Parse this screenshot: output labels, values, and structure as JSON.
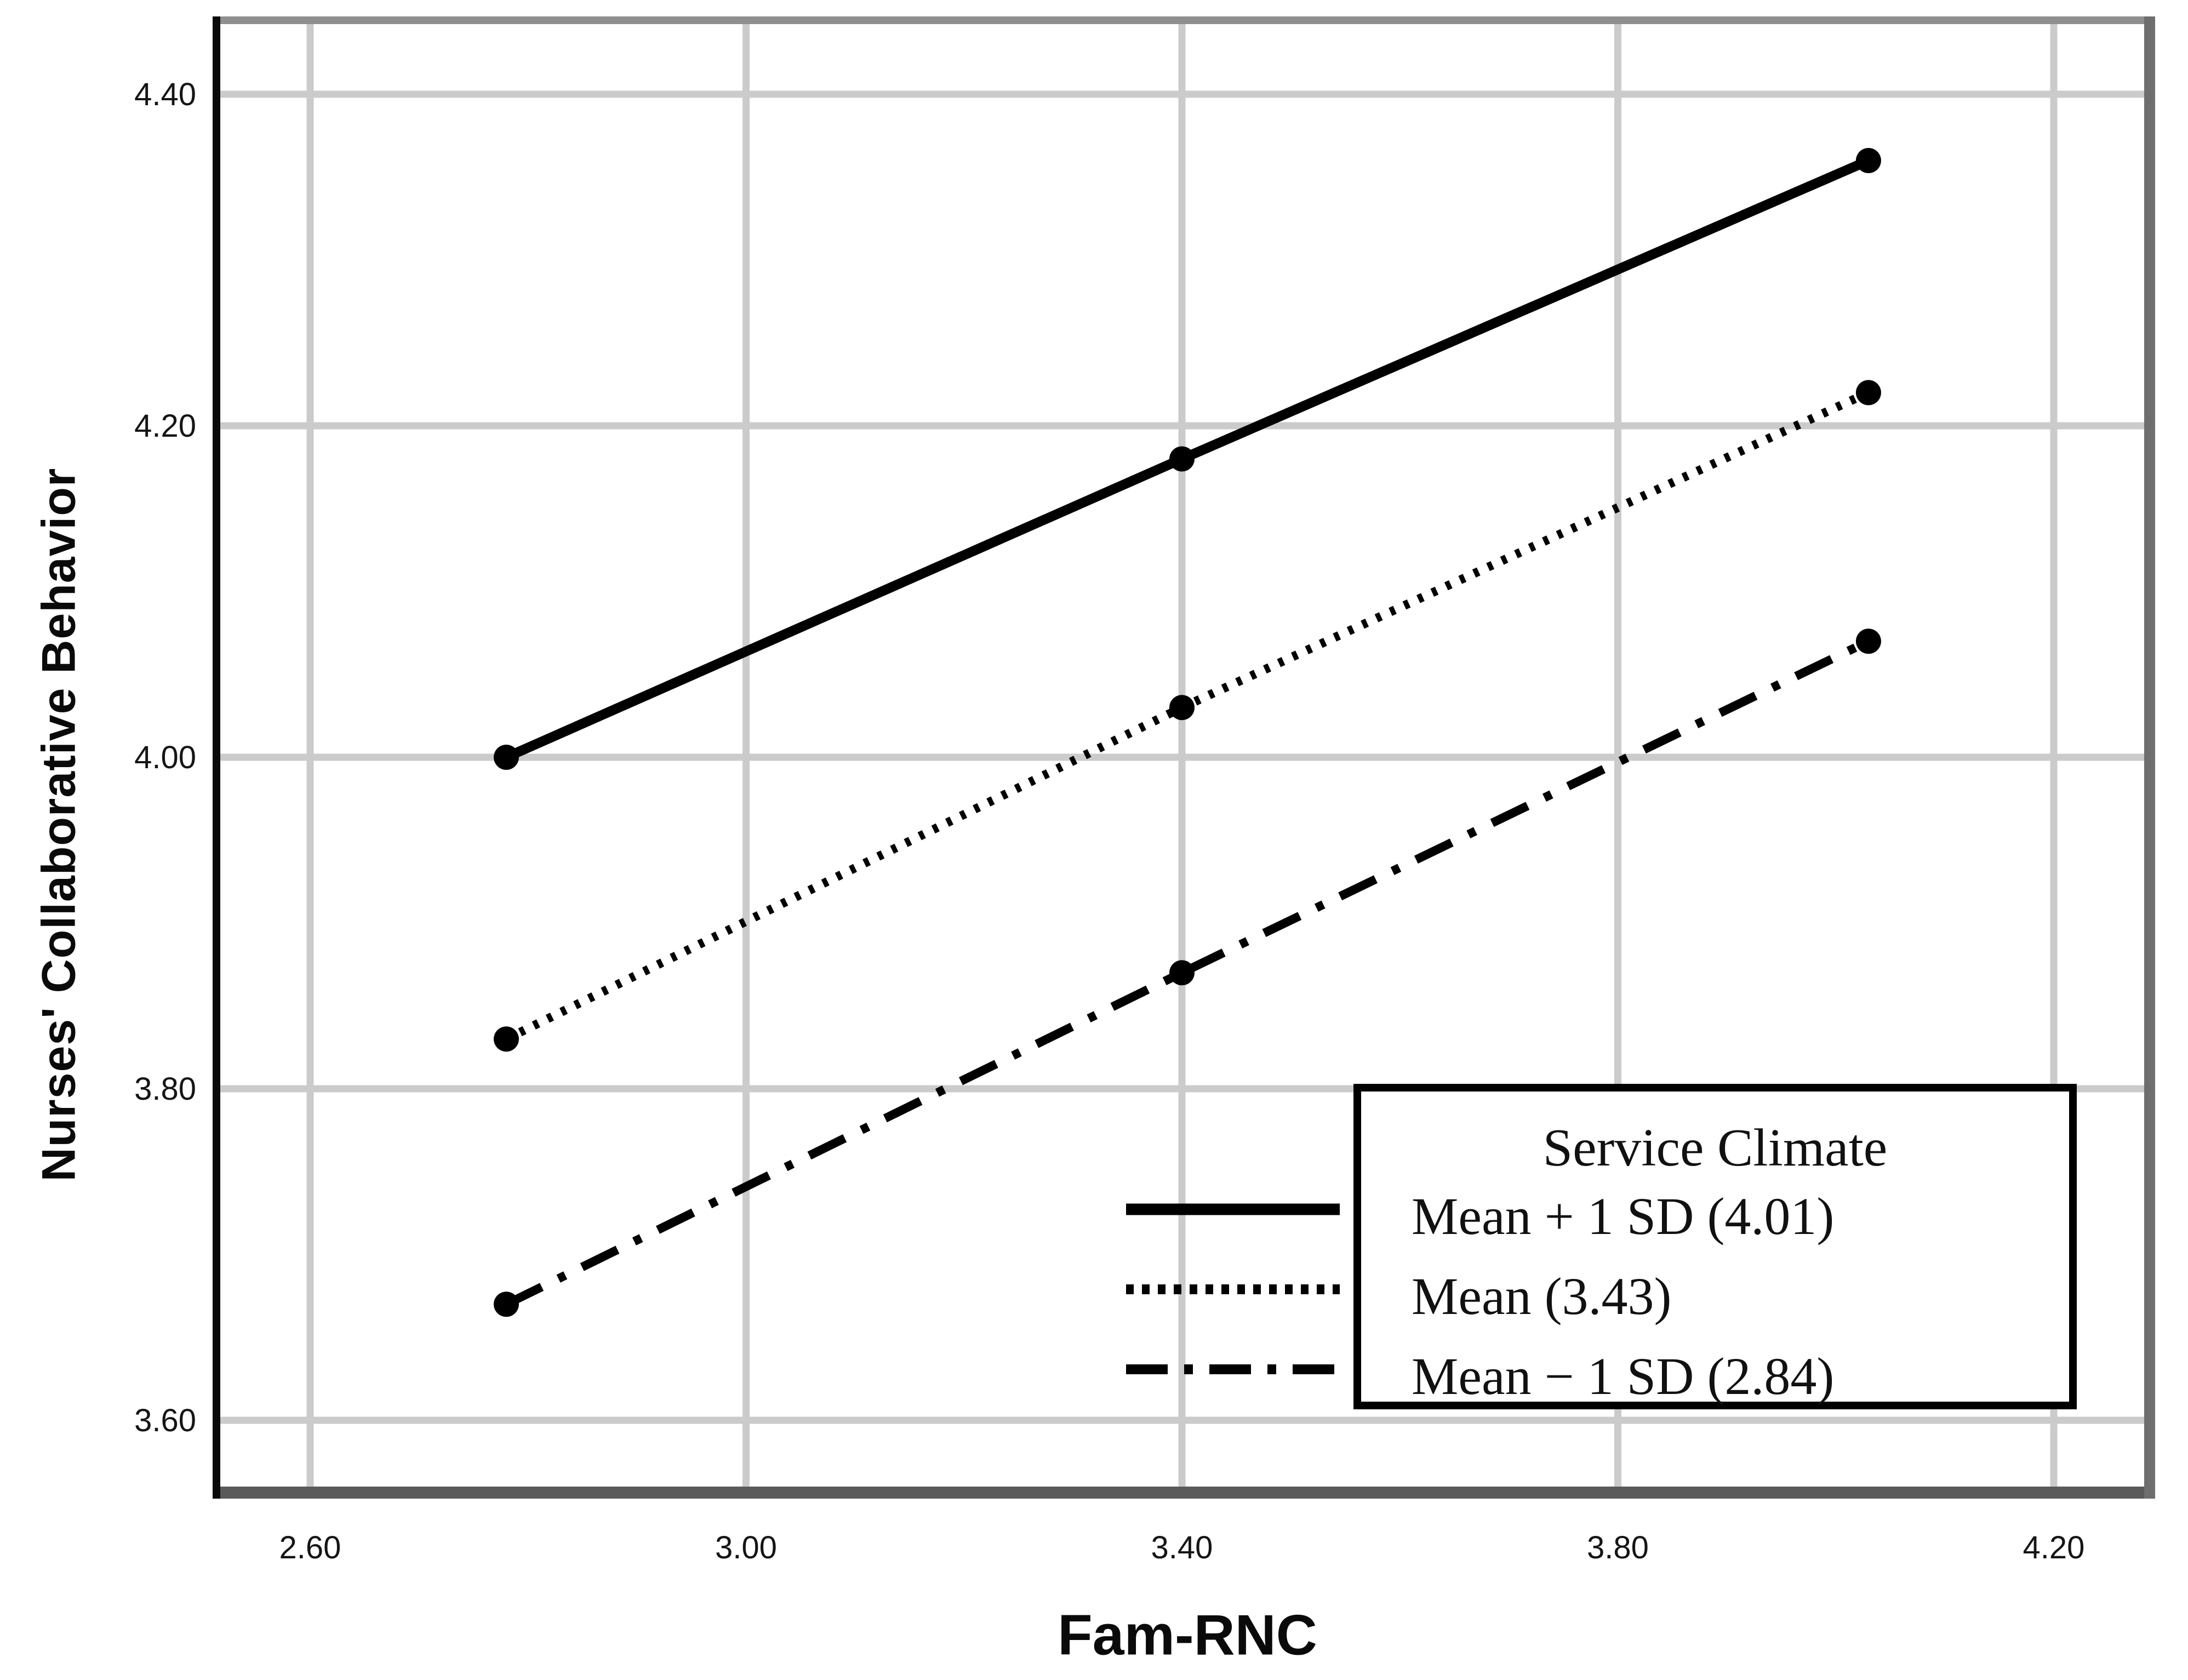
{
  "chart_data": {
    "type": "line",
    "title": "",
    "xlabel": "Fam-RNC",
    "ylabel": "Nurses' Collaborative Behavior",
    "x_ticks": [
      "2.60",
      "3.00",
      "3.40",
      "3.80",
      "4.20"
    ],
    "y_ticks": [
      "3.60",
      "3.80",
      "4.00",
      "4.20",
      "4.40"
    ],
    "xlim": [
      2.51,
      4.29
    ],
    "ylim": [
      3.56,
      4.45
    ],
    "grid": true,
    "legend_title": "Service Climate",
    "legend_position": "inside-lower-right",
    "marker": "filled-circle",
    "x": [
      2.78,
      3.4,
      4.03
    ],
    "series": [
      {
        "name": "Mean + 1 SD (4.01)",
        "dash": "solid",
        "values": [
          4.0,
          4.18,
          4.36
        ]
      },
      {
        "name": "Mean (3.43)",
        "dash": "dotted",
        "values": [
          3.83,
          4.03,
          4.22
        ]
      },
      {
        "name": "Mean − 1 SD (2.84)",
        "dash": "dashdot",
        "values": [
          3.67,
          3.87,
          4.07
        ]
      }
    ],
    "colors": {
      "line": "#000000",
      "gridline": "#cbcbcb",
      "frame_gray": "#6e6e6e",
      "frame_left": "#0a0a0a",
      "background": "#ffffff",
      "text": "#000000"
    }
  }
}
